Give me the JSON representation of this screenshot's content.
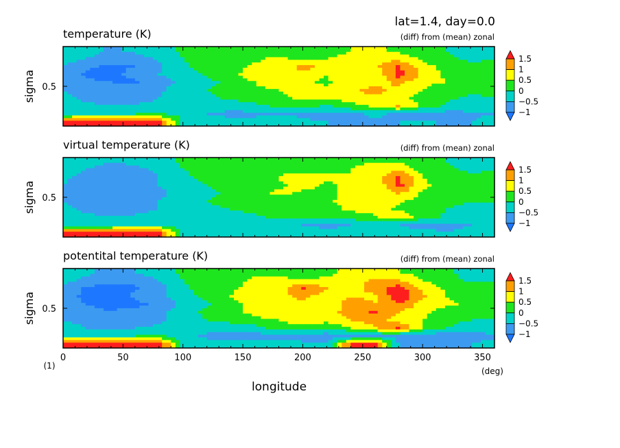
{
  "header": {
    "title": "lat=1.4, day=0.0"
  },
  "colorbar": {
    "levels": [
      -1,
      -0.5,
      0,
      0.5,
      1,
      1.5
    ],
    "labels": [
      "1.5",
      "1",
      "0.5",
      "0",
      "−0.5",
      "−1"
    ],
    "colors": {
      "below_-1": "#1e78ff",
      "-1_to_-0.5": "#3c9bf0",
      "-0.5_to_0": "#00d2c8",
      "0_to_0.5": "#1ee61e",
      "0.5_to_1": "#ffff00",
      "1_to_1.5": "#ffa000",
      "above_1.5": "#ff1e1e"
    }
  },
  "axes": {
    "ylabel": "sigma",
    "ytick": "0.5",
    "xlabel": "longitude",
    "xunit": "(deg)",
    "yunit": "(1)",
    "xticks": [
      "0",
      "50",
      "100",
      "150",
      "200",
      "250",
      "300",
      "350"
    ]
  },
  "chart_data": [
    {
      "type": "heatmap",
      "title": "temperature (K)",
      "subtitle": "(diff) from (mean) zonal",
      "xlabel": "longitude",
      "ylabel": "sigma",
      "xlim": [
        0,
        360
      ],
      "ylim": [
        1,
        0
      ],
      "x": [
        0,
        20,
        40,
        60,
        80,
        100,
        120,
        140,
        160,
        180,
        200,
        220,
        240,
        260,
        280,
        300,
        320,
        340,
        360
      ],
      "y": [
        0.95,
        0.85,
        0.75,
        0.65,
        0.55,
        0.45,
        0.35,
        0.25,
        0.15,
        0.05
      ],
      "values": [
        [
          -0.2,
          -0.3,
          -0.6,
          -0.4,
          -0.2,
          0.1,
          0.2,
          0.0,
          0.3,
          0.2,
          0.1,
          0.3,
          0.5,
          0.6,
          0.4,
          0.2,
          0.0,
          -0.2,
          -0.1
        ],
        [
          -0.3,
          -0.5,
          -0.8,
          -0.7,
          -0.4,
          0.0,
          0.3,
          0.1,
          0.4,
          0.6,
          0.3,
          0.5,
          0.6,
          0.9,
          0.8,
          0.4,
          0.1,
          -0.1,
          0.0
        ],
        [
          -0.5,
          -0.9,
          -1.1,
          -1.0,
          -0.6,
          -0.1,
          0.2,
          0.3,
          0.6,
          0.5,
          1.2,
          0.8,
          0.6,
          0.9,
          1.6,
          0.7,
          0.3,
          0.1,
          0.1
        ],
        [
          -0.6,
          -1.1,
          -1.2,
          -0.8,
          -0.5,
          -0.3,
          0.1,
          0.4,
          0.7,
          0.6,
          0.9,
          0.5,
          0.8,
          0.6,
          1.7,
          0.9,
          0.4,
          0.2,
          0.0
        ],
        [
          -0.7,
          -0.9,
          -1.0,
          -1.1,
          -0.7,
          -0.4,
          -0.2,
          0.2,
          0.5,
          0.8,
          0.6,
          0.4,
          1.0,
          0.7,
          1.2,
          0.6,
          0.5,
          0.3,
          0.2
        ],
        [
          -0.5,
          -0.8,
          -0.9,
          -0.7,
          -0.6,
          -0.2,
          0.0,
          0.3,
          0.4,
          0.5,
          0.7,
          0.6,
          0.9,
          1.2,
          0.8,
          0.5,
          0.2,
          0.1,
          0.1
        ],
        [
          -0.4,
          -0.6,
          -0.8,
          -0.8,
          -0.5,
          -0.3,
          -0.1,
          0.1,
          0.3,
          0.4,
          0.6,
          0.5,
          0.8,
          0.9,
          0.6,
          0.4,
          0.1,
          -0.1,
          0.0
        ],
        [
          -0.3,
          -0.4,
          -0.5,
          -0.4,
          -0.3,
          -0.2,
          -0.3,
          -0.4,
          -0.2,
          0.1,
          0.2,
          -0.1,
          0.3,
          0.6,
          1.1,
          0.3,
          -0.1,
          -0.3,
          -0.2
        ],
        [
          -0.2,
          -0.1,
          -0.1,
          0.0,
          0.1,
          -0.2,
          -0.5,
          -0.6,
          -0.6,
          -0.5,
          -0.6,
          -0.7,
          -0.6,
          -0.4,
          -0.6,
          -0.8,
          -0.7,
          -0.6,
          -0.5
        ],
        [
          1.8,
          1.9,
          2.0,
          1.9,
          1.7,
          -0.1,
          -0.3,
          -0.4,
          -0.3,
          -0.2,
          -0.4,
          -0.5,
          -0.5,
          -0.6,
          -0.5,
          -0.4,
          -0.6,
          -0.5,
          -0.3
        ]
      ]
    },
    {
      "type": "heatmap",
      "title": "virtual temperature (K)",
      "subtitle": "(diff) from (mean) zonal",
      "xlabel": "longitude",
      "ylabel": "sigma",
      "xlim": [
        0,
        360
      ],
      "ylim": [
        1,
        0
      ],
      "x": [
        0,
        20,
        40,
        60,
        80,
        100,
        120,
        140,
        160,
        180,
        200,
        220,
        240,
        260,
        280,
        300,
        320,
        340,
        360
      ],
      "y": [
        0.95,
        0.85,
        0.75,
        0.65,
        0.55,
        0.45,
        0.35,
        0.25,
        0.15,
        0.05
      ],
      "values": [
        [
          -0.2,
          -0.3,
          -0.5,
          -0.4,
          -0.2,
          0.1,
          0.2,
          0.0,
          0.2,
          0.2,
          0.1,
          0.3,
          0.4,
          0.5,
          0.4,
          0.2,
          0.0,
          -0.2,
          -0.1
        ],
        [
          -0.3,
          -0.5,
          -0.7,
          -0.6,
          -0.4,
          0.0,
          0.2,
          0.1,
          0.3,
          0.4,
          0.3,
          0.4,
          0.5,
          0.7,
          0.9,
          0.3,
          0.1,
          -0.1,
          0.0
        ],
        [
          -0.4,
          -0.7,
          -0.8,
          -0.8,
          -0.5,
          -0.1,
          0.1,
          0.2,
          0.4,
          0.5,
          0.9,
          0.6,
          0.5,
          0.7,
          1.6,
          0.5,
          0.2,
          0.1,
          0.1
        ],
        [
          -0.5,
          -0.8,
          -0.9,
          -0.7,
          -0.5,
          -0.2,
          0.0,
          0.3,
          0.5,
          0.4,
          0.7,
          0.4,
          0.6,
          0.5,
          1.7,
          0.6,
          0.3,
          0.1,
          0.0
        ],
        [
          -0.6,
          -0.8,
          -0.8,
          -0.8,
          -0.6,
          -0.3,
          -0.1,
          0.1,
          0.3,
          0.6,
          0.4,
          0.3,
          0.8,
          0.5,
          1.1,
          0.4,
          0.3,
          0.2,
          0.1
        ],
        [
          -0.5,
          -0.7,
          -0.8,
          -0.6,
          -0.5,
          -0.2,
          0.0,
          0.2,
          0.3,
          0.3,
          0.5,
          0.4,
          0.7,
          0.9,
          0.6,
          0.3,
          0.1,
          0.0,
          0.0
        ],
        [
          -0.4,
          -0.6,
          -0.7,
          -0.7,
          -0.5,
          -0.3,
          -0.1,
          0.0,
          0.2,
          0.3,
          0.4,
          0.3,
          0.6,
          0.7,
          0.4,
          0.2,
          0.0,
          -0.1,
          0.0
        ],
        [
          -0.3,
          -0.4,
          -0.5,
          -0.4,
          -0.3,
          -0.2,
          -0.2,
          -0.3,
          -0.1,
          0.1,
          0.1,
          0.0,
          0.2,
          0.4,
          0.9,
          0.2,
          -0.1,
          -0.2,
          -0.2
        ],
        [
          -0.2,
          -0.2,
          -0.2,
          -0.1,
          0.0,
          -0.2,
          -0.4,
          -0.5,
          -0.5,
          -0.4,
          -0.5,
          -0.6,
          -0.5,
          -0.4,
          -0.5,
          -0.6,
          -0.6,
          -0.5,
          -0.4
        ],
        [
          1.7,
          1.8,
          1.9,
          1.8,
          1.6,
          -0.1,
          -0.2,
          -0.3,
          -0.3,
          -0.2,
          -0.3,
          -0.4,
          -0.4,
          -0.5,
          -0.4,
          -0.4,
          -0.5,
          -0.4,
          -0.3
        ]
      ]
    },
    {
      "type": "heatmap",
      "title": "potentital temperature (K)",
      "subtitle": "(diff) from (mean) zonal",
      "xlabel": "longitude",
      "ylabel": "sigma",
      "xlim": [
        0,
        360
      ],
      "ylim": [
        1,
        0
      ],
      "x": [
        0,
        20,
        40,
        60,
        80,
        100,
        120,
        140,
        160,
        180,
        200,
        220,
        240,
        260,
        280,
        300,
        320,
        340,
        360
      ],
      "y": [
        0.95,
        0.85,
        0.75,
        0.65,
        0.55,
        0.45,
        0.35,
        0.25,
        0.15,
        0.05
      ],
      "values": [
        [
          -0.3,
          -0.4,
          -0.7,
          -0.5,
          -0.3,
          0.1,
          0.3,
          0.1,
          0.4,
          0.3,
          0.2,
          0.4,
          0.6,
          0.7,
          0.5,
          0.3,
          0.1,
          -0.2,
          -0.1
        ],
        [
          -0.4,
          -0.6,
          -0.9,
          -0.8,
          -0.5,
          0.0,
          0.4,
          0.2,
          0.6,
          0.7,
          0.5,
          0.6,
          0.8,
          1.1,
          1.0,
          0.5,
          0.2,
          -0.1,
          0.0
        ],
        [
          -0.6,
          -1.1,
          -1.2,
          -1.1,
          -0.7,
          -0.1,
          0.3,
          0.4,
          0.8,
          0.7,
          1.6,
          1.0,
          0.8,
          1.2,
          1.8,
          0.9,
          0.4,
          0.2,
          0.1
        ],
        [
          -0.7,
          -1.2,
          -1.3,
          -0.9,
          -0.6,
          -0.3,
          0.2,
          0.5,
          0.9,
          0.8,
          1.2,
          0.7,
          1.0,
          0.9,
          1.9,
          1.1,
          0.5,
          0.3,
          0.1
        ],
        [
          -0.8,
          -1.0,
          -1.1,
          -1.2,
          -0.8,
          -0.4,
          -0.1,
          0.3,
          0.7,
          1.0,
          0.8,
          0.6,
          1.3,
          1.0,
          1.5,
          0.8,
          0.6,
          0.4,
          0.2
        ],
        [
          -0.6,
          -0.9,
          -1.0,
          -0.8,
          -0.7,
          -0.2,
          0.1,
          0.4,
          0.6,
          0.7,
          0.9,
          0.8,
          1.2,
          1.6,
          1.0,
          0.6,
          0.3,
          0.2,
          0.1
        ],
        [
          -0.5,
          -0.7,
          -0.9,
          -0.9,
          -0.6,
          -0.3,
          0.0,
          0.2,
          0.4,
          0.5,
          0.8,
          0.7,
          1.0,
          1.2,
          0.8,
          0.5,
          0.2,
          0.0,
          0.0
        ],
        [
          -0.3,
          -0.5,
          -0.6,
          -0.5,
          -0.4,
          -0.2,
          -0.3,
          -0.4,
          -0.2,
          0.2,
          0.3,
          0.0,
          0.5,
          0.9,
          1.6,
          0.4,
          0.0,
          -0.3,
          -0.2
        ],
        [
          -0.2,
          -0.1,
          -0.1,
          0.0,
          0.1,
          -0.3,
          -0.6,
          -0.7,
          -0.7,
          -0.6,
          -0.7,
          -0.8,
          -0.7,
          -0.5,
          -0.7,
          -0.9,
          -0.8,
          -0.7,
          -0.6
        ],
        [
          2.0,
          2.1,
          2.2,
          2.1,
          1.9,
          -0.1,
          -0.3,
          -0.4,
          -0.4,
          -0.3,
          -0.4,
          -0.5,
          1.6,
          1.7,
          -0.5,
          -0.5,
          -0.6,
          -0.5,
          -0.3
        ]
      ]
    }
  ]
}
